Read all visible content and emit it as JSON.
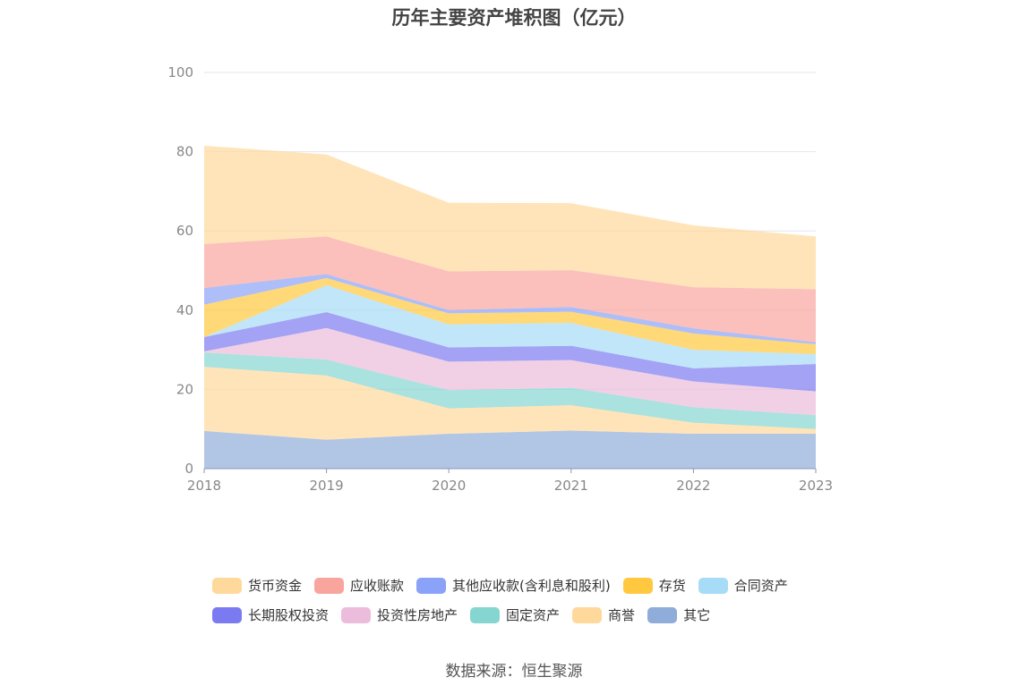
{
  "chart_data": {
    "type": "area",
    "stacked": true,
    "title": "历年主要资产堆积图（亿元）",
    "source": "数据来源：恒生聚源",
    "xlabel": "",
    "ylabel": "",
    "ylim": [
      0,
      100
    ],
    "yticks": [
      "0",
      "20",
      "40",
      "60",
      "80",
      "100"
    ],
    "x": [
      "2018",
      "2019",
      "2020",
      "2021",
      "2022",
      "2023"
    ],
    "grid": true,
    "legend_position": "bottom",
    "series": [
      {
        "name": "其它",
        "color": "#90acd9",
        "values": [
          9.5,
          7.3,
          8.8,
          9.6,
          8.8,
          8.8
        ]
      },
      {
        "name": "商誉",
        "color": "#ffd89b",
        "values": [
          16.2,
          16.2,
          6.4,
          6.4,
          2.8,
          1.2
        ]
      },
      {
        "name": "固定资产",
        "color": "#85d6d0",
        "values": [
          3.6,
          4.0,
          4.6,
          4.4,
          3.9,
          3.5
        ]
      },
      {
        "name": "投资性房地产",
        "color": "#ebbcdb",
        "values": [
          0.3,
          8.0,
          7.2,
          7.0,
          6.5,
          6.0
        ]
      },
      {
        "name": "长期股权投资",
        "color": "#7c7af0",
        "values": [
          3.6,
          4.0,
          3.6,
          3.6,
          3.3,
          6.9
        ]
      },
      {
        "name": "合同资产",
        "color": "#a7dcf7",
        "values": [
          0,
          6.8,
          5.8,
          5.8,
          4.7,
          2.5
        ]
      },
      {
        "name": "存货",
        "color": "#ffc83e",
        "values": [
          8.2,
          1.8,
          2.8,
          2.8,
          4.1,
          2.5
        ]
      },
      {
        "name": "其他应收款(含利息和股利)",
        "color": "#8aa2f7",
        "values": [
          4.2,
          1.0,
          0.8,
          1.2,
          1.3,
          0.5
        ]
      },
      {
        "name": "应收账款",
        "color": "#f9a59e",
        "values": [
          11.1,
          9.5,
          9.8,
          9.3,
          10.4,
          13.4
        ]
      },
      {
        "name": "货币资金",
        "color": "#ffd89b",
        "values": [
          24.8,
          20.7,
          17.3,
          16.9,
          15.6,
          13.3
        ]
      }
    ]
  },
  "legend": {
    "row1": [
      "货币资金",
      "应收账款",
      "其他应收款(含利息和股利)",
      "存货",
      "合同资产"
    ],
    "row2": [
      "长期股权投资",
      "投资性房地产",
      "固定资产",
      "商誉",
      "其它"
    ]
  }
}
